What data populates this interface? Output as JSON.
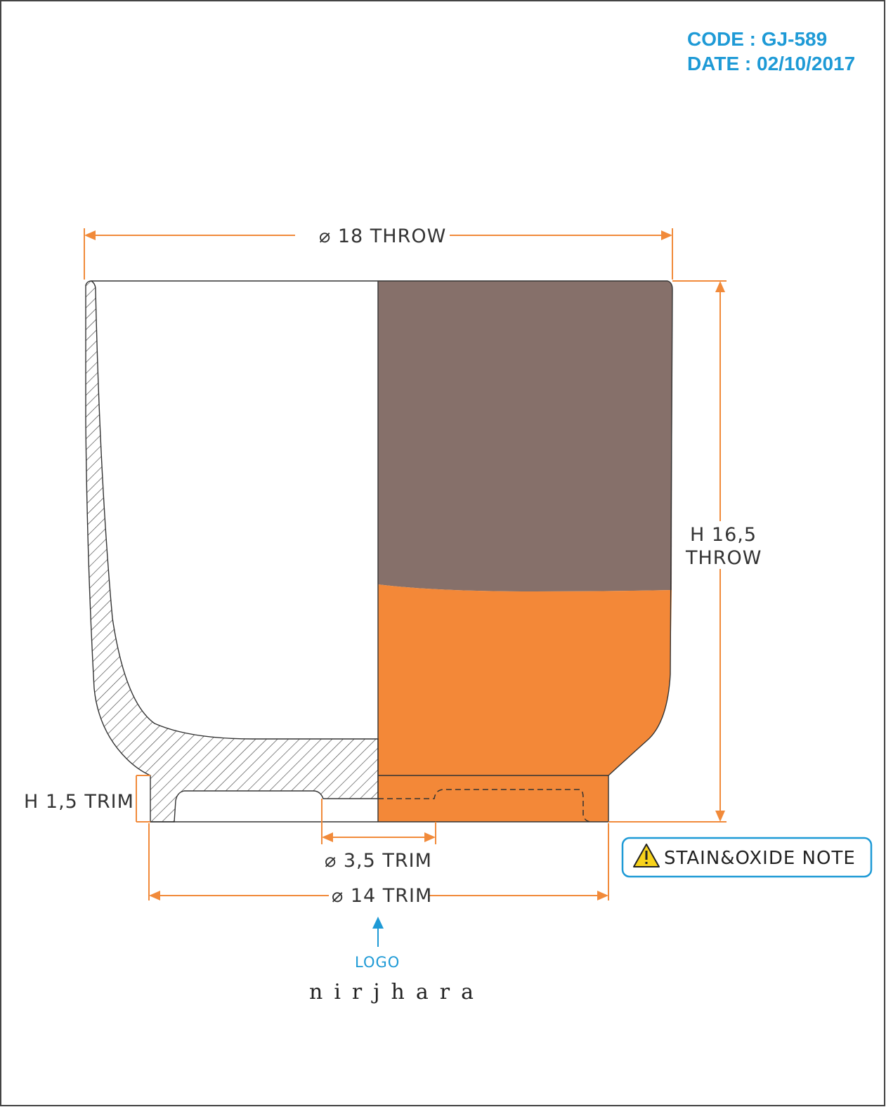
{
  "header": {
    "code_line": "CODE : GJ-589",
    "date_line": "DATE : 02/10/2017"
  },
  "dimensions": {
    "top_diameter": "⌀ 18 THROW",
    "height_line1": "H 16,5",
    "height_line2": "THROW",
    "foot_height": "H 1,5 TRIM",
    "inner_foot": "⌀ 3,5 TRIM",
    "foot_diameter": "⌀ 14 TRIM"
  },
  "note": {
    "label": "STAIN&OXIDE NOTE",
    "icon": "warning-icon"
  },
  "logo": {
    "label": "LOGO",
    "brand": "nirjhara"
  },
  "colors": {
    "oxide_brown": "#86706a",
    "glaze_orange": "#f38838",
    "dimension_orange": "#f18a3a",
    "accent_blue": "#1e9ad6",
    "warning_yellow": "#f7d21b"
  }
}
